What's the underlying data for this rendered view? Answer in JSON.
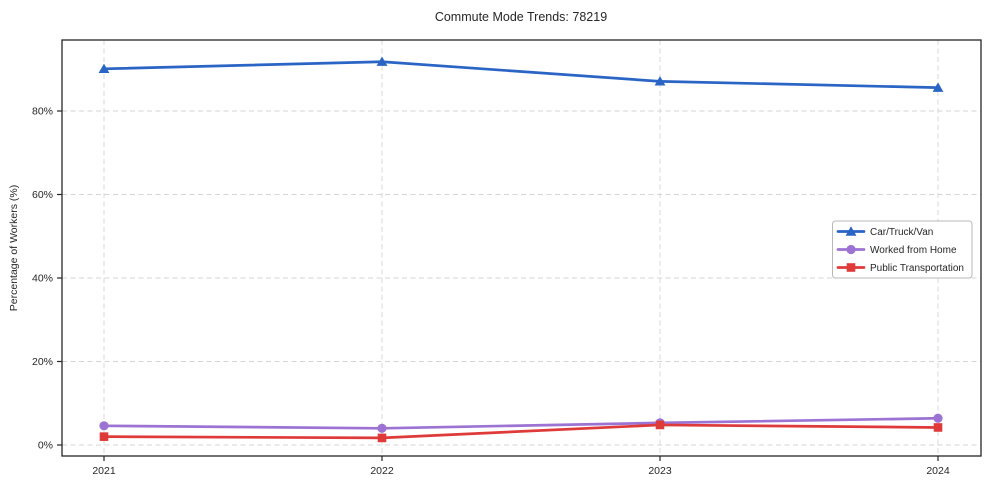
{
  "title": "Commute Mode Trends: 78219",
  "chart_data": {
    "type": "line",
    "title": "Commute Mode Trends: 78219",
    "xlabel": "",
    "ylabel": "Percentage of Workers (%)",
    "categories": [
      "2021",
      "2022",
      "2023",
      "2024"
    ],
    "series": [
      {
        "name": "Car/Truck/Van",
        "color": "#2a64c5",
        "marker": "triangle",
        "values": [
          90.1,
          91.8,
          87.1,
          85.6
        ]
      },
      {
        "name": "Worked from Home",
        "color": "#9c73d3",
        "marker": "circle",
        "values": [
          4.6,
          4.0,
          5.3,
          6.4
        ]
      },
      {
        "name": "Public Transportation",
        "color": "#df3a3a",
        "marker": "square",
        "values": [
          2.0,
          1.7,
          4.8,
          4.2
        ]
      }
    ],
    "y_ticks": [
      "0%",
      "20%",
      "40%",
      "60%",
      "80%"
    ],
    "y_tick_values": [
      0,
      20,
      40,
      60,
      80
    ],
    "ylim": [
      -2.6,
      97.0
    ],
    "grid": "dashed, both axes",
    "grid_color": "#d4d4d4",
    "spine_color": "#262626",
    "background": "#ffffff",
    "legend_position": "center right"
  }
}
